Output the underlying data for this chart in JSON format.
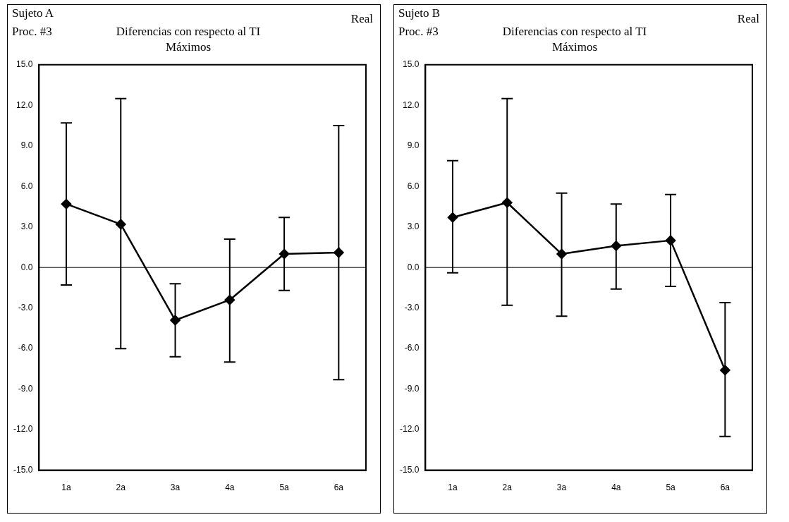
{
  "chart_data": [
    {
      "type": "line",
      "title": "Diferencias con respecto al TI",
      "subtitle": "Máximos",
      "annotations": [
        "Sujeto A",
        "Proc. #3",
        "Real"
      ],
      "categories": [
        "1a",
        "2a",
        "3a",
        "4a",
        "5a",
        "6a"
      ],
      "series": [
        {
          "color": "#000000",
          "values": [
            4.7,
            3.2,
            -3.9,
            -2.4,
            1.0,
            1.1
          ],
          "errors": [
            [
              -1.3,
              10.7
            ],
            [
              -6.0,
              12.5
            ],
            [
              -6.6,
              -1.2
            ],
            [
              -7.0,
              2.1
            ],
            [
              -1.7,
              3.7
            ],
            [
              -8.3,
              10.5
            ]
          ]
        }
      ],
      "ylim": [
        -15,
        15
      ],
      "yticks": [
        {
          "value": -15,
          "label": "-15.0"
        },
        {
          "value": -12,
          "label": "-12.0"
        },
        {
          "value": -9,
          "label": "-9.0"
        },
        {
          "value": -6,
          "label": "-6.0"
        },
        {
          "value": -3,
          "label": "-3.0"
        },
        {
          "value": 0,
          "label": "0.0"
        },
        {
          "value": 3,
          "label": "3.0"
        },
        {
          "value": 6,
          "label": "6.0"
        },
        {
          "value": 9,
          "label": "9.0"
        },
        {
          "value": 12,
          "label": "12.0"
        },
        {
          "value": 15,
          "label": "15.0"
        }
      ],
      "ref_lines": [
        {
          "axis": "y",
          "value": 0,
          "color": "#000000"
        }
      ],
      "grid": false,
      "legend": false,
      "marker": "diamond",
      "line_style": "solid"
    },
    {
      "type": "line",
      "title": "Diferencias con respecto al TI",
      "subtitle": "Máximos",
      "annotations": [
        "Sujeto B",
        "Proc. #3",
        "Real"
      ],
      "categories": [
        "1a",
        "2a",
        "3a",
        "4a",
        "5a",
        "6a"
      ],
      "series": [
        {
          "color": "#000000",
          "values": [
            3.7,
            4.8,
            1.0,
            1.6,
            2.0,
            -7.6
          ],
          "errors": [
            [
              -0.4,
              7.9
            ],
            [
              -2.8,
              12.5
            ],
            [
              -3.6,
              5.5
            ],
            [
              -1.6,
              4.7
            ],
            [
              -1.4,
              5.4
            ],
            [
              -12.5,
              -2.6
            ]
          ]
        }
      ],
      "ylim": [
        -15,
        15
      ],
      "yticks": [
        {
          "value": -15,
          "label": "-15.0"
        },
        {
          "value": -12,
          "label": "-12.0"
        },
        {
          "value": -9,
          "label": "-9.0"
        },
        {
          "value": -6,
          "label": "-6.0"
        },
        {
          "value": -3,
          "label": "-3.0"
        },
        {
          "value": 0,
          "label": "0.0"
        },
        {
          "value": 3,
          "label": "3.0"
        },
        {
          "value": 6,
          "label": "6.0"
        },
        {
          "value": 9,
          "label": "9.0"
        },
        {
          "value": 12,
          "label": "12.0"
        },
        {
          "value": 15,
          "label": "15.0"
        }
      ],
      "ref_lines": [
        {
          "axis": "y",
          "value": 0,
          "color": "#000000"
        }
      ],
      "grid": false,
      "legend": false,
      "marker": "diamond",
      "line_style": "solid"
    }
  ]
}
